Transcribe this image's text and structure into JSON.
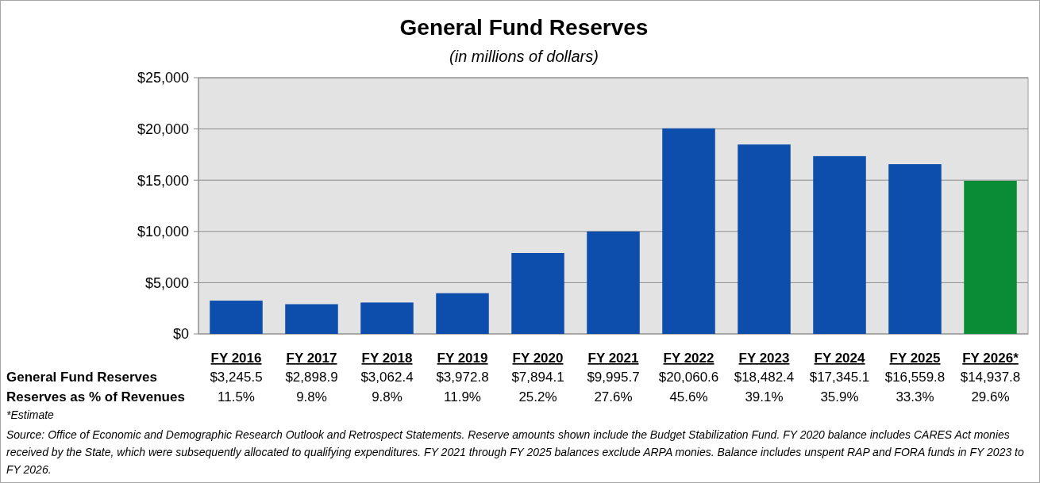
{
  "chart_data": {
    "type": "bar",
    "title": "General Fund Reserves",
    "subtitle": "(in millions of dollars)",
    "categories": [
      "FY 2016",
      "FY 2017",
      "FY 2018",
      "FY 2019",
      "FY 2020",
      "FY 2021",
      "FY 2022",
      "FY 2023",
      "FY 2024",
      "FY 2025",
      "FY 2026*"
    ],
    "series": [
      {
        "name": "General Fund Reserves",
        "colors": [
          "#0d4dab",
          "#0d4dab",
          "#0d4dab",
          "#0d4dab",
          "#0d4dab",
          "#0d4dab",
          "#0d4dab",
          "#0d4dab",
          "#0d4dab",
          "#0d4dab",
          "#0a8b36"
        ],
        "values": [
          3245.5,
          2898.9,
          3062.4,
          3972.8,
          7894.1,
          9995.7,
          20060.6,
          18482.4,
          17345.1,
          16559.8,
          14937.8
        ],
        "value_labels": [
          "$3,245.5",
          "$2,898.9",
          "$3,062.4",
          "$3,972.8",
          "$7,894.1",
          "$9,995.7",
          "$20,060.6",
          "$18,482.4",
          "$17,345.1",
          "$16,559.8",
          "$14,937.8"
        ]
      }
    ],
    "ylim": [
      0,
      25000
    ],
    "yticks": [
      {
        "value": 0,
        "label": "$0"
      },
      {
        "value": 5000,
        "label": "$5,000"
      },
      {
        "value": 10000,
        "label": "$10,000"
      },
      {
        "value": 15000,
        "label": "$15,000"
      },
      {
        "value": 20000,
        "label": "$20,000"
      },
      {
        "value": 25000,
        "label": "$25,000"
      }
    ],
    "grid": "y",
    "annotations": [
      "Reserves as % of Revenues",
      "11.5%",
      "9.8%",
      "9.8%",
      "11.9%",
      "25.2%",
      "27.6%",
      "45.6%",
      "39.1%",
      "35.9%",
      "33.3%",
      "29.6%",
      "*Estimate",
      "Source: Office of Economic and Demographic Research Outlook and Retrospect Statements. Reserve amounts shown include the Budget Stabilization Fund. FY 2020 balance includes CARES Act monies received by the State, which were subsequently allocated to qualifying expenditures. FY 2021 through FY 2025 balances exclude ARPA monies. Balance includes unspent RAP and FORA funds in FY 2023 to FY 2026."
    ]
  }
}
